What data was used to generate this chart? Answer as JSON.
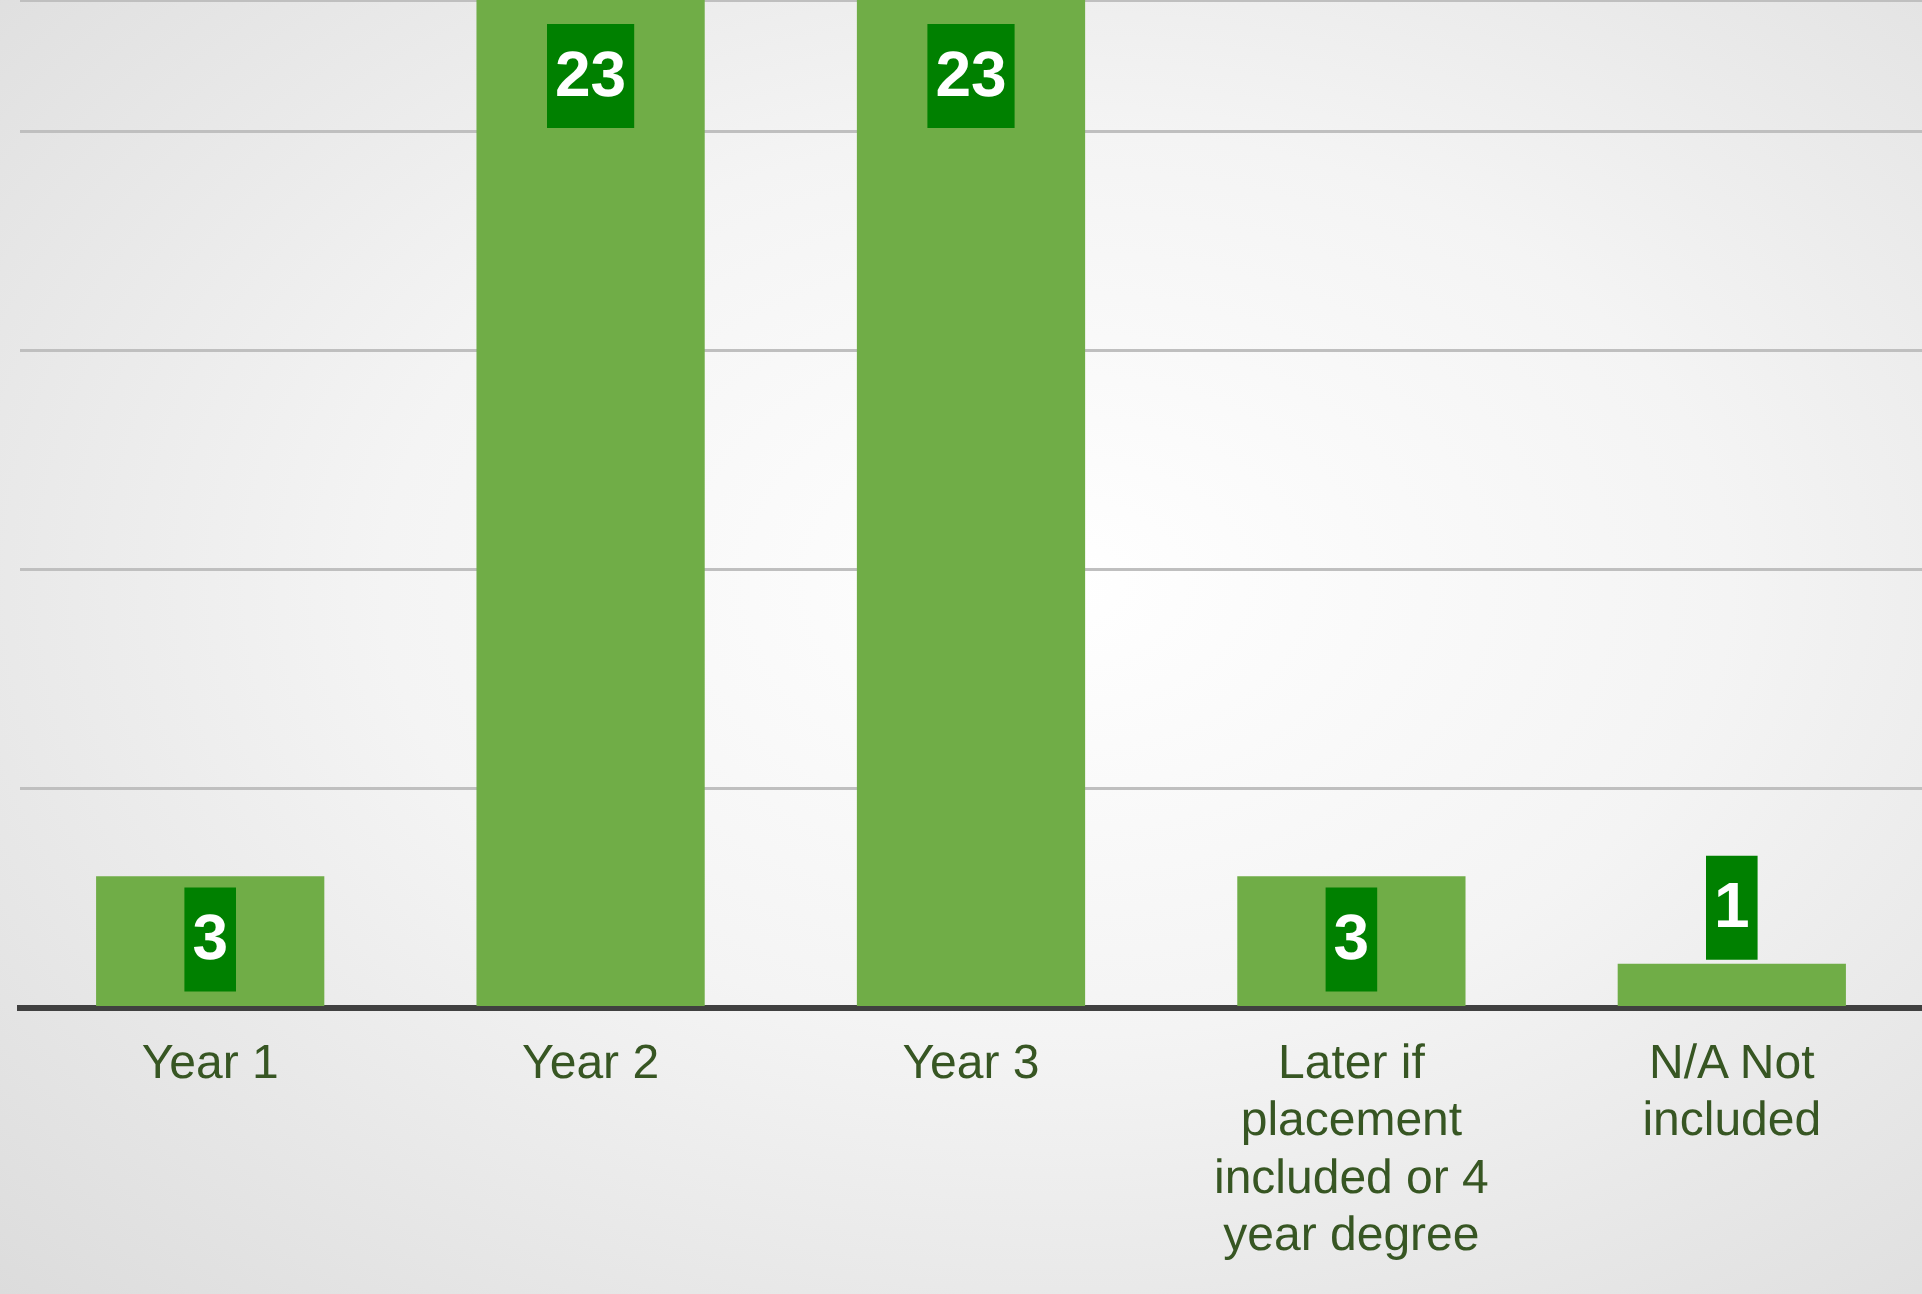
{
  "chart_data": {
    "type": "bar",
    "categories": [
      "Year 1",
      "Year 2",
      "Year 3",
      "Later if placement included or 4 year degree",
      "N/A Not included"
    ],
    "values": [
      3,
      23,
      23,
      3,
      1
    ],
    "color": "#70ad47",
    "tick_labels": "x",
    "grid": "y",
    "legend": false,
    "data_labels": true
  }
}
